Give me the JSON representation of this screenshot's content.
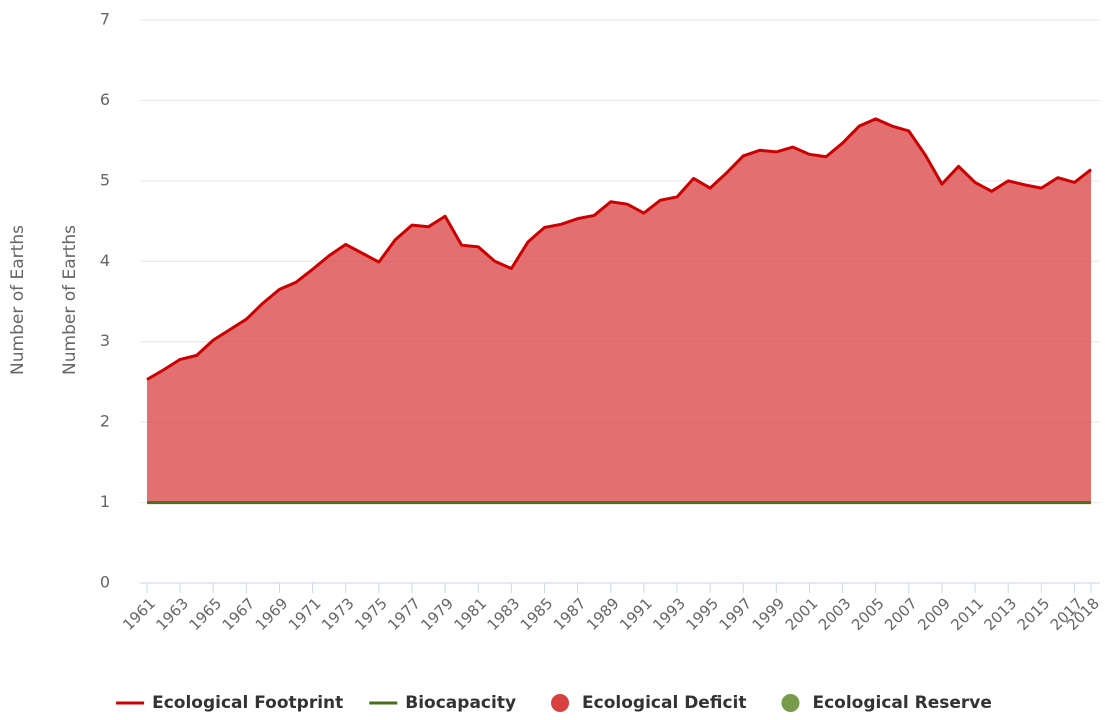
{
  "chart_data": {
    "type": "area",
    "ylabels": [
      "Number of Earths",
      "Number of Earths"
    ],
    "x": [
      1961,
      1962,
      1963,
      1964,
      1965,
      1966,
      1967,
      1968,
      1969,
      1970,
      1971,
      1972,
      1973,
      1974,
      1975,
      1976,
      1977,
      1978,
      1979,
      1980,
      1981,
      1982,
      1983,
      1984,
      1985,
      1986,
      1987,
      1988,
      1989,
      1990,
      1991,
      1992,
      1993,
      1994,
      1995,
      1996,
      1997,
      1998,
      1999,
      2000,
      2001,
      2002,
      2003,
      2004,
      2005,
      2006,
      2007,
      2008,
      2009,
      2010,
      2011,
      2012,
      2013,
      2014,
      2015,
      2016,
      2017,
      2018
    ],
    "series": [
      {
        "name": "Ecological Footprint",
        "color": "#cc0000",
        "values": [
          2.53,
          2.65,
          2.78,
          2.83,
          3.02,
          3.15,
          3.28,
          3.48,
          3.65,
          3.74,
          3.9,
          4.07,
          4.21,
          4.1,
          3.99,
          4.27,
          4.45,
          4.43,
          4.56,
          4.2,
          4.18,
          4.0,
          3.91,
          4.24,
          4.42,
          4.46,
          4.53,
          4.57,
          4.74,
          4.71,
          4.6,
          4.76,
          4.8,
          5.03,
          4.91,
          5.1,
          5.31,
          5.38,
          5.36,
          5.42,
          5.33,
          5.3,
          5.47,
          5.68,
          5.77,
          5.68,
          5.62,
          5.32,
          4.96,
          5.18,
          4.98,
          4.87,
          5.0,
          4.95,
          4.91,
          5.04,
          4.98,
          5.14
        ]
      },
      {
        "name": "Biocapacity",
        "color": "#4a6e1a",
        "values": [
          1,
          1,
          1,
          1,
          1,
          1,
          1,
          1,
          1,
          1,
          1,
          1,
          1,
          1,
          1,
          1,
          1,
          1,
          1,
          1,
          1,
          1,
          1,
          1,
          1,
          1,
          1,
          1,
          1,
          1,
          1,
          1,
          1,
          1,
          1,
          1,
          1,
          1,
          1,
          1,
          1,
          1,
          1,
          1,
          1,
          1,
          1,
          1,
          1,
          1,
          1,
          1,
          1,
          1,
          1,
          1,
          1,
          1
        ]
      }
    ],
    "areas": [
      {
        "name": "Ecological Deficit",
        "color": "#d94040"
      },
      {
        "name": "Ecological Reserve",
        "color": "#779b4a"
      }
    ],
    "ylim": [
      0,
      7
    ],
    "yticks": [
      0,
      1,
      2,
      3,
      4,
      5,
      6,
      7
    ],
    "xlim": [
      1961,
      2018
    ],
    "xticks": [
      1961,
      1963,
      1965,
      1967,
      1969,
      1971,
      1973,
      1975,
      1977,
      1979,
      1981,
      1983,
      1985,
      1987,
      1989,
      1991,
      1993,
      1995,
      1997,
      1999,
      2001,
      2003,
      2005,
      2007,
      2009,
      2011,
      2013,
      2015,
      2017,
      2018
    ],
    "grid": true,
    "legend": "bottom"
  }
}
